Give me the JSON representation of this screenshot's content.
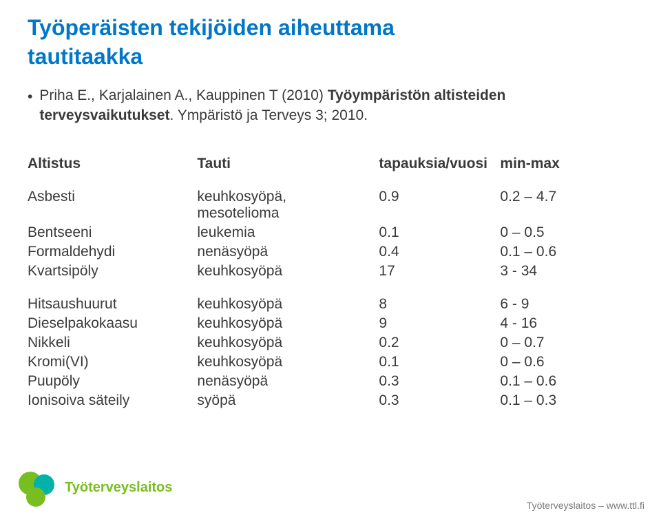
{
  "title_line1": "Työperäisten tekijöiden aiheuttama",
  "title_line2": "tautitaakka",
  "subtitle": {
    "bullet": "•",
    "prefix": "Priha E., Karjalainen A., Kauppinen T (2010) ",
    "bold": "Työympäristön altisteiden terveysvaikutukset",
    "suffix": ". Ympäristö ja Terveys 3; 2010."
  },
  "colors": {
    "title": "#0077c8",
    "body": "#3a3a3a",
    "logo_green": "#78be20",
    "logo_teal": "#00b2a9",
    "footer": "#7a7a7a"
  },
  "table": {
    "headers": [
      "Altistus",
      "Tauti",
      "tapauksia/vuosi",
      "min-max"
    ],
    "group1": [
      {
        "a": "Asbesti",
        "b": "keuhkosyöpä,\nmesotelioma",
        "c": "0.9",
        "d": "0.2 – 4.7"
      },
      {
        "a": "Bentseeni",
        "b": "leukemia",
        "c": "0.1",
        "d": "0 – 0.5"
      },
      {
        "a": "Formaldehydi",
        "b": "nenäsyöpä",
        "c": "0.4",
        "d": "0.1 – 0.6"
      },
      {
        "a": "Kvartsipöly",
        "b": "keuhkosyöpä",
        "c": "17",
        "d": "3 - 34"
      }
    ],
    "group2": [
      {
        "a": "Hitsaushuurut",
        "b": "keuhkosyöpä",
        "c": "8",
        "d": "6 - 9"
      },
      {
        "a": "Dieselpakokaasu",
        "b": "keuhkosyöpä",
        "c": "9",
        "d": "4 - 16"
      },
      {
        "a": "Nikkeli",
        "b": "keuhkosyöpä",
        "c": "0.2",
        "d": "0 – 0.7"
      },
      {
        "a": "Kromi(VI)",
        "b": "keuhkosyöpä",
        "c": "0.1",
        "d": "0 – 0.6"
      },
      {
        "a": "Puupöly",
        "b": "nenäsyöpä",
        "c": "0.3",
        "d": "0.1 – 0.6"
      },
      {
        "a": "Ionisoiva säteily",
        "b": "syöpä",
        "c": "0.3",
        "d": "0.1 – 0.3"
      }
    ]
  },
  "logo_text": "Työterveyslaitos",
  "footer": "Työterveyslaitos  –  www.ttl.fi"
}
